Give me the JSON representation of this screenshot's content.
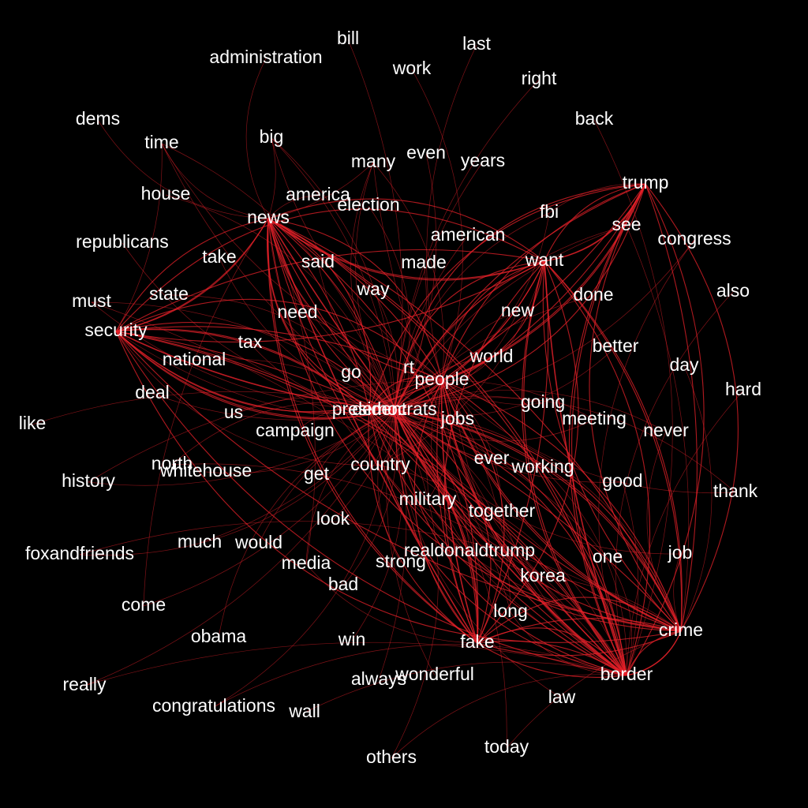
{
  "edge_color": "#e8212a",
  "background": "#000000",
  "label_color": "#ffffff",
  "nodes": [
    {
      "id": "bill"
    },
    {
      "id": "last"
    },
    {
      "id": "administration"
    },
    {
      "id": "work"
    },
    {
      "id": "right"
    },
    {
      "id": "dems"
    },
    {
      "id": "back"
    },
    {
      "id": "time"
    },
    {
      "id": "big"
    },
    {
      "id": "even"
    },
    {
      "id": "many"
    },
    {
      "id": "years"
    },
    {
      "id": "trump"
    },
    {
      "id": "house"
    },
    {
      "id": "america"
    },
    {
      "id": "election"
    },
    {
      "id": "news"
    },
    {
      "id": "fbi"
    },
    {
      "id": "see"
    },
    {
      "id": "american"
    },
    {
      "id": "congress"
    },
    {
      "id": "republicans"
    },
    {
      "id": "take"
    },
    {
      "id": "said"
    },
    {
      "id": "made"
    },
    {
      "id": "want"
    },
    {
      "id": "way"
    },
    {
      "id": "done"
    },
    {
      "id": "also"
    },
    {
      "id": "must"
    },
    {
      "id": "state"
    },
    {
      "id": "need"
    },
    {
      "id": "new"
    },
    {
      "id": "security"
    },
    {
      "id": "better"
    },
    {
      "id": "tax"
    },
    {
      "id": "national"
    },
    {
      "id": "world"
    },
    {
      "id": "day"
    },
    {
      "id": "go"
    },
    {
      "id": "rt"
    },
    {
      "id": "people"
    },
    {
      "id": "hard"
    },
    {
      "id": "deal"
    },
    {
      "id": "going"
    },
    {
      "id": "us"
    },
    {
      "id": "president"
    },
    {
      "id": "democrats"
    },
    {
      "id": "jobs"
    },
    {
      "id": "meeting"
    },
    {
      "id": "like"
    },
    {
      "id": "campaign"
    },
    {
      "id": "never"
    },
    {
      "id": "north"
    },
    {
      "id": "whitehouse"
    },
    {
      "id": "country"
    },
    {
      "id": "ever"
    },
    {
      "id": "working"
    },
    {
      "id": "history"
    },
    {
      "id": "get"
    },
    {
      "id": "good"
    },
    {
      "id": "thank"
    },
    {
      "id": "military"
    },
    {
      "id": "together"
    },
    {
      "id": "look"
    },
    {
      "id": "much"
    },
    {
      "id": "would"
    },
    {
      "id": "foxandfriends"
    },
    {
      "id": "realdonaldtrump"
    },
    {
      "id": "job"
    },
    {
      "id": "strong"
    },
    {
      "id": "one"
    },
    {
      "id": "media"
    },
    {
      "id": "korea"
    },
    {
      "id": "bad"
    },
    {
      "id": "come"
    },
    {
      "id": "long"
    },
    {
      "id": "crime"
    },
    {
      "id": "obama"
    },
    {
      "id": "win"
    },
    {
      "id": "fake"
    },
    {
      "id": "wonderful"
    },
    {
      "id": "border"
    },
    {
      "id": "always"
    },
    {
      "id": "really"
    },
    {
      "id": "law"
    },
    {
      "id": "congratulations"
    },
    {
      "id": "wall"
    },
    {
      "id": "today"
    },
    {
      "id": "others"
    }
  ],
  "edges": [
    [
      "news",
      "democrats"
    ],
    [
      "news",
      "people"
    ],
    [
      "news",
      "fake"
    ],
    [
      "news",
      "border"
    ],
    [
      "news",
      "crime"
    ],
    [
      "news",
      "president"
    ],
    [
      "news",
      "want"
    ],
    [
      "news",
      "security"
    ],
    [
      "news",
      "country"
    ],
    [
      "news",
      "media"
    ],
    [
      "news",
      "jobs"
    ],
    [
      "news",
      "america"
    ],
    [
      "want",
      "democrats"
    ],
    [
      "want",
      "people"
    ],
    [
      "want",
      "border"
    ],
    [
      "want",
      "crime"
    ],
    [
      "want",
      "security"
    ],
    [
      "want",
      "fake"
    ],
    [
      "want",
      "trump"
    ],
    [
      "want",
      "country"
    ],
    [
      "trump",
      "democrats"
    ],
    [
      "trump",
      "crime"
    ],
    [
      "trump",
      "border"
    ],
    [
      "trump",
      "people"
    ],
    [
      "trump",
      "fbi"
    ],
    [
      "trump",
      "president"
    ],
    [
      "security",
      "democrats"
    ],
    [
      "security",
      "border"
    ],
    [
      "security",
      "crime"
    ],
    [
      "security",
      "people"
    ],
    [
      "security",
      "country"
    ],
    [
      "security",
      "president"
    ],
    [
      "security",
      "jobs"
    ],
    [
      "border",
      "democrats"
    ],
    [
      "border",
      "crime"
    ],
    [
      "border",
      "people"
    ],
    [
      "border",
      "fake"
    ],
    [
      "border",
      "president"
    ],
    [
      "border",
      "country"
    ],
    [
      "border",
      "jobs"
    ],
    [
      "border",
      "wall"
    ],
    [
      "border",
      "military"
    ],
    [
      "crime",
      "democrats"
    ],
    [
      "crime",
      "people"
    ],
    [
      "crime",
      "fake"
    ],
    [
      "crime",
      "president"
    ],
    [
      "crime",
      "jobs"
    ],
    [
      "crime",
      "country"
    ],
    [
      "fake",
      "democrats"
    ],
    [
      "fake",
      "people"
    ],
    [
      "fake",
      "president"
    ],
    [
      "fake",
      "media"
    ],
    [
      "democrats",
      "people"
    ],
    [
      "democrats",
      "jobs"
    ],
    [
      "democrats",
      "president"
    ],
    [
      "democrats",
      "country"
    ],
    [
      "democrats",
      "rt"
    ],
    [
      "democrats",
      "go"
    ],
    [
      "democrats",
      "campaign"
    ],
    [
      "democrats",
      "military"
    ],
    [
      "democrats",
      "get"
    ],
    [
      "democrats",
      "look"
    ],
    [
      "democrats",
      "new"
    ],
    [
      "democrats",
      "world"
    ],
    [
      "democrats",
      "way"
    ],
    [
      "democrats",
      "said"
    ],
    [
      "democrats",
      "need"
    ],
    [
      "democrats",
      "tax"
    ],
    [
      "democrats",
      "us"
    ],
    [
      "democrats",
      "going"
    ],
    [
      "democrats",
      "meeting"
    ],
    [
      "democrats",
      "ever"
    ],
    [
      "democrats",
      "working"
    ],
    [
      "democrats",
      "together"
    ],
    [
      "democrats",
      "strong"
    ],
    [
      "democrats",
      "realdonaldtrump"
    ],
    [
      "democrats",
      "korea"
    ],
    [
      "democrats",
      "long"
    ],
    [
      "democrats",
      "media"
    ],
    [
      "democrats",
      "bad"
    ],
    [
      "democrats",
      "would"
    ],
    [
      "democrats",
      "much"
    ],
    [
      "democrats",
      "north"
    ],
    [
      "democrats",
      "whitehouse"
    ],
    [
      "democrats",
      "national"
    ],
    [
      "democrats",
      "deal"
    ],
    [
      "democrats",
      "state"
    ],
    [
      "democrats",
      "take"
    ],
    [
      "democrats",
      "made"
    ],
    [
      "democrats",
      "american"
    ],
    [
      "democrats",
      "election"
    ],
    [
      "democrats",
      "many"
    ],
    [
      "democrats",
      "big"
    ],
    [
      "democrats",
      "time"
    ],
    [
      "democrats",
      "house"
    ],
    [
      "democrats",
      "republicans"
    ],
    [
      "democrats",
      "must"
    ],
    [
      "democrats",
      "done"
    ],
    [
      "democrats",
      "better"
    ],
    [
      "democrats",
      "never"
    ],
    [
      "democrats",
      "good"
    ],
    [
      "democrats",
      "one"
    ],
    [
      "democrats",
      "job"
    ],
    [
      "democrats",
      "win"
    ],
    [
      "democrats",
      "wonderful"
    ],
    [
      "democrats",
      "always"
    ],
    [
      "democrats",
      "law"
    ],
    [
      "democrats",
      "see"
    ],
    [
      "democrats",
      "even"
    ],
    [
      "democrats",
      "years"
    ],
    [
      "democrats",
      "obama"
    ],
    [
      "people",
      "jobs"
    ],
    [
      "people",
      "president"
    ],
    [
      "people",
      "country"
    ],
    [
      "people",
      "world"
    ],
    [
      "people",
      "new"
    ],
    [
      "people",
      "going"
    ],
    [
      "people",
      "meeting"
    ],
    [
      "people",
      "working"
    ],
    [
      "people",
      "together"
    ],
    [
      "people",
      "korea"
    ],
    [
      "people",
      "long"
    ],
    [
      "people",
      "realdonaldtrump"
    ],
    [
      "time",
      "democrats"
    ],
    [
      "time",
      "people"
    ],
    [
      "time",
      "security"
    ],
    [
      "time",
      "news"
    ],
    [
      "big",
      "democrats"
    ],
    [
      "big",
      "people"
    ],
    [
      "big",
      "news"
    ],
    [
      "many",
      "democrats"
    ],
    [
      "many",
      "people"
    ],
    [
      "many",
      "border"
    ],
    [
      "many",
      "news"
    ],
    [
      "fbi",
      "democrats"
    ],
    [
      "fbi",
      "people"
    ],
    [
      "see",
      "democrats"
    ],
    [
      "see",
      "crime"
    ],
    [
      "congress",
      "border"
    ],
    [
      "congress",
      "democrats"
    ],
    [
      "must",
      "democrats"
    ],
    [
      "must",
      "border"
    ],
    [
      "thank",
      "democrats"
    ],
    [
      "thank",
      "people"
    ],
    [
      "history",
      "democrats"
    ],
    [
      "history",
      "people"
    ],
    [
      "foxandfriends",
      "democrats"
    ],
    [
      "foxandfriends",
      "crime"
    ],
    [
      "really",
      "democrats"
    ],
    [
      "really",
      "border"
    ],
    [
      "congratulations",
      "democrats"
    ],
    [
      "congratulations",
      "border"
    ],
    [
      "today",
      "democrats"
    ],
    [
      "today",
      "crime"
    ],
    [
      "others",
      "democrats"
    ],
    [
      "others",
      "border"
    ],
    [
      "come",
      "democrats"
    ],
    [
      "come",
      "news"
    ],
    [
      "also",
      "border"
    ],
    [
      "day",
      "crime"
    ],
    [
      "hard",
      "border"
    ],
    [
      "like",
      "democrats"
    ],
    [
      "dems",
      "news"
    ],
    [
      "back",
      "border"
    ],
    [
      "last",
      "people"
    ],
    [
      "bill",
      "democrats"
    ],
    [
      "administration",
      "news"
    ],
    [
      "work",
      "people"
    ],
    [
      "right",
      "democrats"
    ],
    [
      "military",
      "border"
    ],
    [
      "military",
      "people"
    ],
    [
      "realdonaldtrump",
      "border"
    ],
    [
      "korea",
      "north"
    ],
    [
      "korea",
      "crime"
    ],
    [
      "long",
      "border"
    ],
    [
      "one",
      "border"
    ],
    [
      "job",
      "crime"
    ],
    [
      "good",
      "border"
    ],
    [
      "never",
      "crime"
    ],
    [
      "working",
      "border"
    ],
    [
      "together",
      "border"
    ]
  ]
}
